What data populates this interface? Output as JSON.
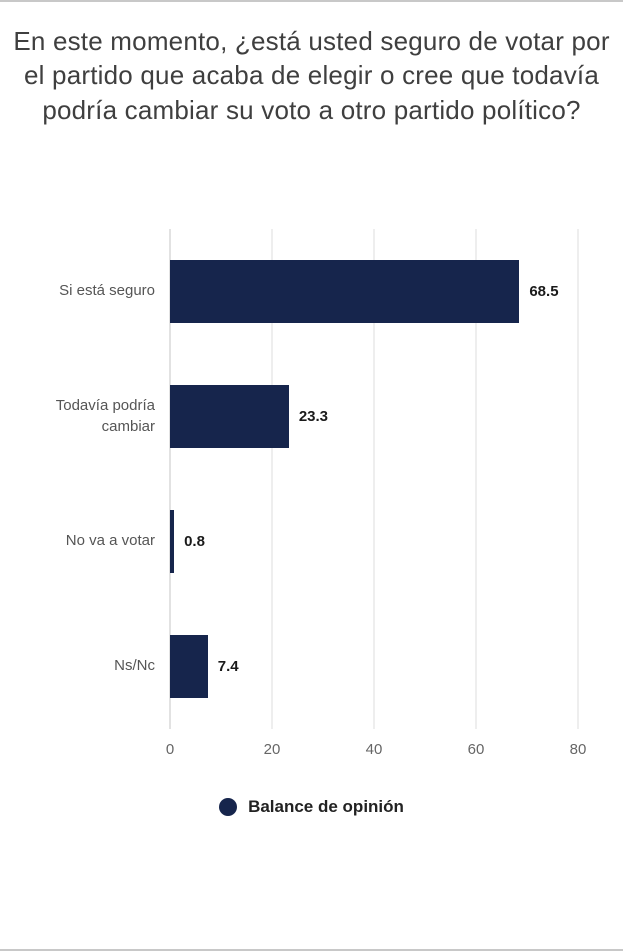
{
  "title": "En este momento, ¿está usted seguro de votar por el partido que acaba de elegir o cree que todavía podría cambiar su voto a otro partido político?",
  "chart_data": {
    "type": "bar",
    "orientation": "horizontal",
    "title": "En este momento, ¿está usted seguro de votar por el partido que acaba de elegir o cree que todavía podría cambiar su voto a otro partido político?",
    "categories": [
      "Si está seguro",
      "Todavía podría cambiar",
      "No va a votar",
      "Ns/Nc"
    ],
    "values": [
      68.5,
      23.3,
      0.8,
      7.4
    ],
    "xlim": [
      0,
      80
    ],
    "ticks": [
      0,
      20,
      40,
      60,
      80
    ],
    "xlabel": "",
    "ylabel": "",
    "grid": "vertical",
    "legend": "Balance de opinión",
    "legend_position": "bottom",
    "bar_color": "#16254c"
  }
}
